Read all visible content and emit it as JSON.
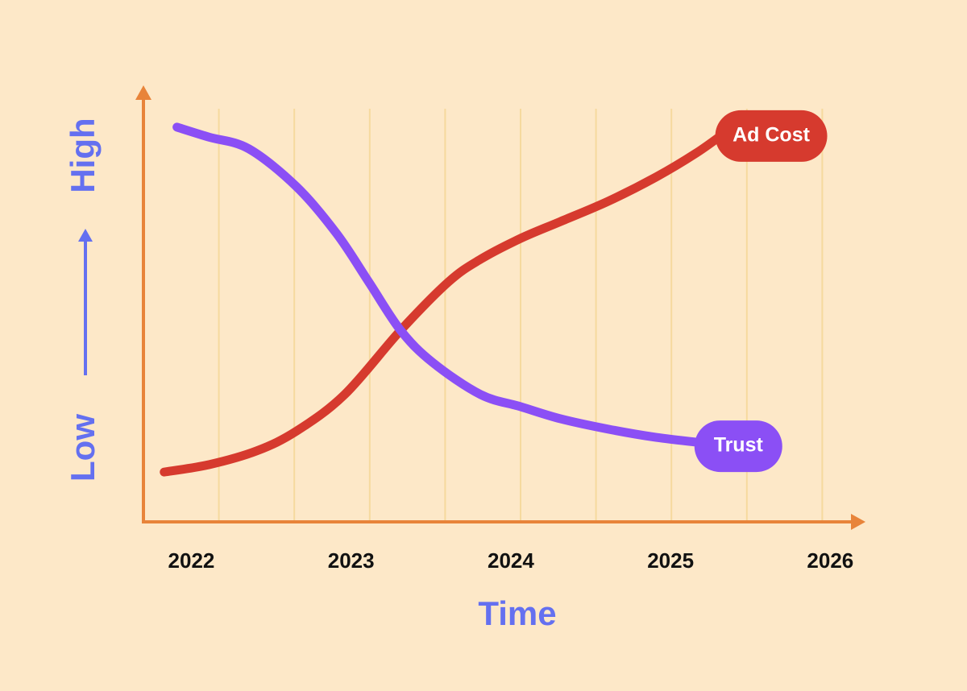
{
  "chart_data": {
    "type": "line",
    "x_label": "Time",
    "y_label_low": "Low",
    "y_label_high": "High",
    "xlim": [
      2021.7,
      2026.2
    ],
    "xticks": [
      2022,
      2023,
      2024,
      2025,
      2026
    ],
    "ylim": [
      0,
      100
    ],
    "axis_color": "#e8843a",
    "label_color": "#6470f0",
    "grid_color": "#f6d99e",
    "series": [
      {
        "name": "Ad Cost",
        "color": "#d63a2e",
        "x": [
          2021.83,
          2022.11,
          2022.41,
          2022.66,
          2022.96,
          2023.31,
          2023.61,
          2023.81,
          2024.06,
          2024.31,
          2024.61,
          2024.91,
          2025.16,
          2025.34
        ],
        "values": [
          11.5,
          13.2,
          16.4,
          21.0,
          29.4,
          44.2,
          55.4,
          60.6,
          65.4,
          69.3,
          74.0,
          79.6,
          85.1,
          89.8
        ]
      },
      {
        "name": "Trust",
        "color": "#8b4ff5",
        "x": [
          2021.91,
          2022.11,
          2022.36,
          2022.66,
          2022.91,
          2023.11,
          2023.31,
          2023.51,
          2023.81,
          2024.06,
          2024.31,
          2024.61,
          2024.91,
          2025.21
        ],
        "values": [
          91.1,
          88.8,
          86.1,
          77.3,
          66.5,
          55.4,
          44.2,
          36.8,
          29.4,
          26.6,
          23.8,
          21.4,
          19.5,
          18.2
        ]
      }
    ]
  }
}
